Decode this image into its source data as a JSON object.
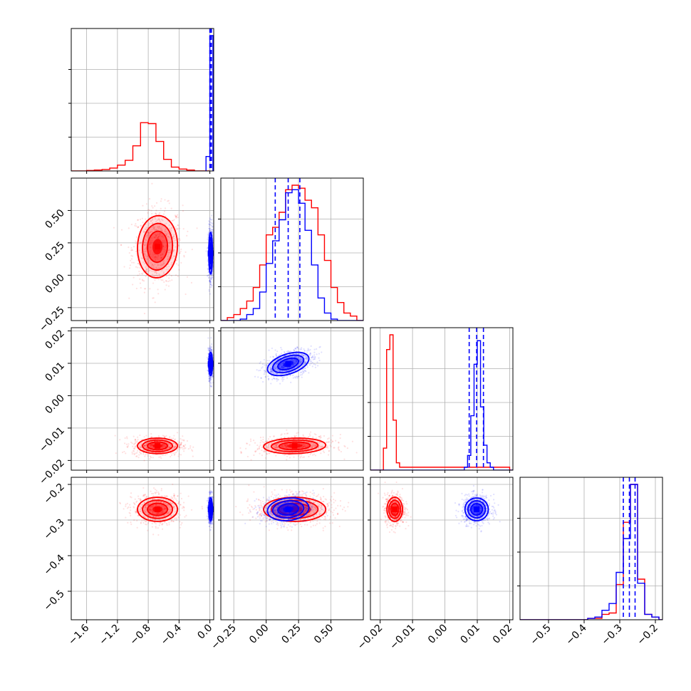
{
  "chart_data": {
    "type": "corner",
    "colors": {
      "model_a": "#ff0000",
      "model_b": "#0000ff",
      "grid": "#b0b0b0",
      "frame": "#000000"
    },
    "ranges": [
      [
        -1.8,
        0.05
      ],
      [
        -0.35,
        0.75
      ],
      [
        -0.023,
        0.021
      ],
      [
        -0.58,
        -0.18
      ]
    ],
    "ticks": [
      [
        -1.6,
        -1.2,
        -0.8,
        -0.4,
        0.0
      ],
      [
        -0.25,
        0.0,
        0.25,
        0.5
      ],
      [
        -0.02,
        -0.01,
        0.0,
        0.01,
        0.02
      ],
      [
        -0.5,
        -0.4,
        -0.3,
        -0.2
      ]
    ],
    "tick_labels": [
      [
        "−1.6",
        "−1.2",
        "−0.8",
        "−0.4",
        "0.0"
      ],
      [
        "−0.25",
        "0.00",
        "0.25",
        "0.50"
      ],
      [
        "−0.02",
        "−0.01",
        "0.00",
        "0.01",
        "0.02"
      ],
      [
        "−0.5",
        "−0.4",
        "−0.3",
        "−0.2"
      ]
    ],
    "grid": true,
    "series": [
      {
        "means": [
          -0.68,
          0.22,
          -0.0155,
          -0.27
        ],
        "sds": [
          0.13,
          0.12,
          0.0012,
          0.017
        ],
        "correlations": {
          "1-0": 0.05,
          "2-0": 0.0,
          "3-0": 0.0,
          "2-1": 0.1,
          "3-1": 0.0,
          "3-2": 0.0
        },
        "quantiles": null,
        "histograms": [
          {
            "edges": [
              -1.8,
              -1.7,
              -1.6,
              -1.5,
              -1.4,
              -1.3,
              -1.2,
              -1.1,
              -1.0,
              -0.9,
              -0.8,
              -0.7,
              -0.6,
              -0.5,
              -0.4,
              -0.3,
              -0.2,
              -0.1,
              0.0
            ],
            "counts": [
              0,
              0,
              0.01,
              0.02,
              0.03,
              0.06,
              0.12,
              0.22,
              0.52,
              1.0,
              0.98,
              0.61,
              0.24,
              0.08,
              0.04,
              0.02,
              0.0,
              0.0
            ]
          },
          {
            "edges": [
              -0.35,
              -0.3,
              -0.25,
              -0.2,
              -0.15,
              -0.1,
              -0.05,
              0.0,
              0.05,
              0.1,
              0.15,
              0.2,
              0.25,
              0.3,
              0.35,
              0.4,
              0.45,
              0.5,
              0.55,
              0.6,
              0.65,
              0.7,
              0.75
            ],
            "counts": [
              0.0,
              0.02,
              0.04,
              0.08,
              0.13,
              0.22,
              0.37,
              0.57,
              0.62,
              0.72,
              0.87,
              0.9,
              0.88,
              0.8,
              0.75,
              0.57,
              0.4,
              0.22,
              0.12,
              0.05,
              0.03,
              0.0
            ]
          },
          {
            "edges": [
              -0.023,
              -0.022,
              -0.021,
              -0.02,
              -0.019,
              -0.018,
              -0.017,
              -0.016,
              -0.015,
              -0.014,
              -0.013,
              -0.012,
              -0.011,
              -0.01,
              -0.009,
              -0.008,
              -0.007,
              -0.006,
              -0.005,
              -0.004,
              -0.003,
              -0.002,
              -0.001,
              0.0,
              0.001,
              0.002,
              0.003,
              0.004,
              0.005,
              0.006,
              0.007,
              0.008,
              0.009,
              0.01,
              0.011,
              0.012,
              0.013,
              0.014,
              0.015,
              0.016,
              0.017,
              0.018,
              0.019,
              0.02,
              0.021
            ],
            "counts": [
              0.0,
              0.0,
              0.0,
              0.0,
              0.15,
              0.82,
              0.92,
              0.34,
              0.05,
              0.02,
              0.02,
              0.02,
              0.02,
              0.02,
              0.02,
              0.02,
              0.02,
              0.02,
              0.02,
              0.02,
              0.02,
              0.02,
              0.02,
              0.02,
              0.02,
              0.02,
              0.02,
              0.02,
              0.02,
              0.02,
              0.02,
              0.02,
              0.02,
              0.02,
              0.02,
              0.02,
              0.02,
              0.02,
              0.02,
              0.02,
              0.02,
              0.02,
              0.02,
              0.0
            ]
          },
          {
            "edges": [
              -0.58,
              -0.39,
              -0.37,
              -0.35,
              -0.33,
              -0.31,
              -0.29,
              -0.27,
              -0.25,
              -0.23,
              -0.21,
              -0.19,
              -0.18
            ],
            "counts": [
              0.0,
              0.01,
              0.01,
              0.04,
              0.05,
              0.26,
              0.72,
              1.0,
              0.3,
              0.04,
              0.02,
              0.0
            ]
          }
        ]
      },
      {
        "means": [
          0.01,
          0.17,
          0.0098,
          -0.27
        ],
        "sds": [
          0.012,
          0.08,
          0.0018,
          0.016
        ],
        "correlations": {
          "1-0": 0.0,
          "2-0": 0.0,
          "3-0": 0.0,
          "2-1": 0.45,
          "3-1": 0.15,
          "3-2": 0.0
        },
        "quantiles": [
          [
            0.0,
            0.01,
            0.02
          ],
          [
            0.07,
            0.17,
            0.26
          ],
          [
            0.0075,
            0.0098,
            0.0119
          ],
          [
            -0.29,
            -0.273,
            -0.257
          ]
        ],
        "histograms": [
          {
            "edges": [
              -0.05,
              0.0,
              0.01,
              0.02,
              0.03,
              0.04,
              0.05
            ],
            "counts": [
              0.3,
              2.8,
              2.8,
              2.8,
              2.8,
              0.0
            ]
          },
          {
            "edges": [
              -0.35,
              -0.3,
              -0.25,
              -0.2,
              -0.15,
              -0.1,
              -0.05,
              0.0,
              0.05,
              0.1,
              0.15,
              0.2,
              0.25,
              0.3,
              0.35,
              0.4,
              0.45,
              0.5,
              0.55,
              0.6,
              0.65,
              0.7,
              0.75
            ],
            "counts": [
              0.0,
              0.0,
              0.0,
              0.01,
              0.04,
              0.08,
              0.19,
              0.38,
              0.53,
              0.67,
              0.85,
              0.87,
              0.78,
              0.6,
              0.37,
              0.15,
              0.05,
              0.01,
              0.0,
              0.0,
              0.0,
              0.0
            ]
          },
          {
            "edges": [
              -0.023,
              -0.022,
              -0.021,
              -0.02,
              -0.019,
              -0.018,
              -0.017,
              -0.016,
              -0.015,
              -0.014,
              -0.013,
              -0.012,
              -0.011,
              -0.01,
              -0.009,
              -0.008,
              -0.007,
              -0.006,
              -0.005,
              -0.004,
              -0.003,
              -0.002,
              -0.001,
              0.0,
              0.001,
              0.002,
              0.003,
              0.004,
              0.005,
              0.006,
              0.007,
              0.008,
              0.009,
              0.01,
              0.011,
              0.012,
              0.013,
              0.014,
              0.015,
              0.016,
              0.017,
              0.018,
              0.019,
              0.02,
              0.021
            ],
            "counts": [
              0.0,
              0.0,
              0.0,
              0.0,
              0.0,
              0.0,
              0.0,
              0.0,
              0.0,
              0.0,
              0.0,
              0.0,
              0.0,
              0.0,
              0.0,
              0.0,
              0.0,
              0.0,
              0.0,
              0.0,
              0.0,
              0.0,
              0.0,
              0.0,
              0.0,
              0.0,
              0.0,
              0.0,
              0.0,
              0.02,
              0.1,
              0.37,
              0.72,
              0.88,
              0.43,
              0.17,
              0.05,
              0.02,
              0.0,
              0.0,
              0.0,
              0.0,
              0.0,
              0.0
            ]
          },
          {
            "edges": [
              -0.58,
              -0.39,
              -0.37,
              -0.35,
              -0.33,
              -0.31,
              -0.29,
              -0.27,
              -0.25,
              -0.23,
              -0.21,
              -0.19,
              -0.18
            ],
            "counts": [
              0.0,
              0.01,
              0.02,
              0.07,
              0.12,
              0.35,
              0.6,
              1.0,
              0.27,
              0.04,
              0.02,
              0.0
            ]
          }
        ]
      }
    ]
  }
}
